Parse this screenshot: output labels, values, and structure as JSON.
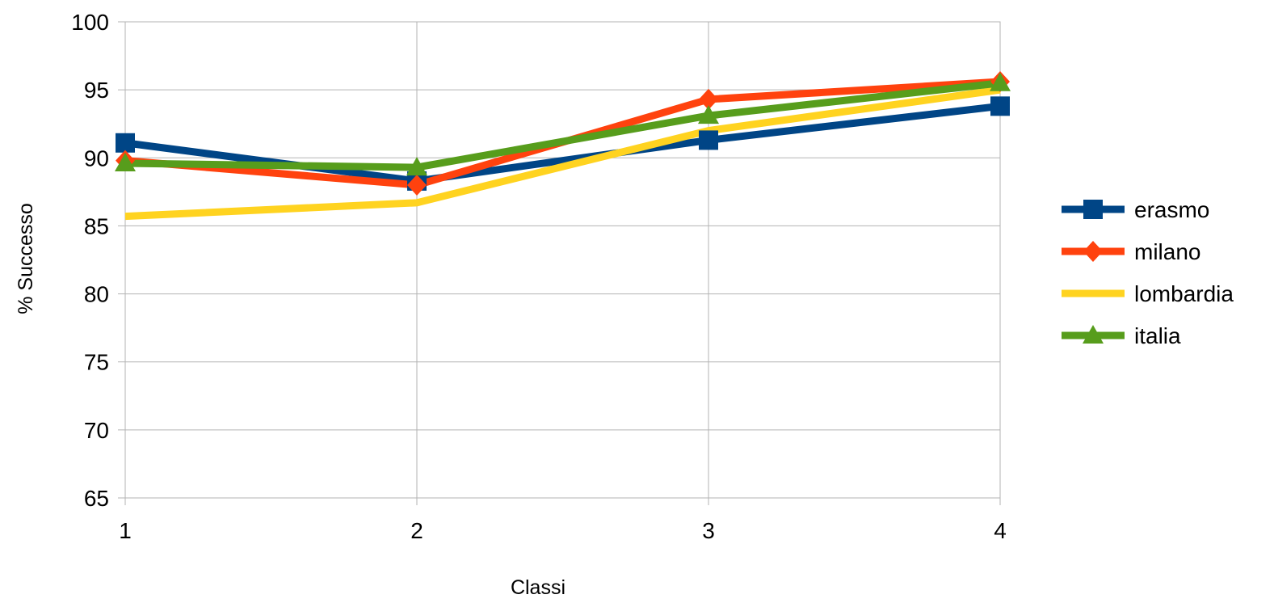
{
  "chart_data": {
    "type": "line",
    "title": "",
    "xlabel": "Classi",
    "ylabel": "% Successo",
    "x": [
      1,
      2,
      3,
      4
    ],
    "x_tick_labels": [
      "1",
      "2",
      "3",
      "4"
    ],
    "ylim": [
      65,
      100
    ],
    "y_ticks": [
      65,
      70,
      75,
      80,
      85,
      90,
      95,
      100
    ],
    "y_tick_labels": [
      "65",
      "70",
      "75",
      "80",
      "85",
      "90",
      "95",
      "100"
    ],
    "grid": true,
    "legend_position": "right",
    "series": [
      {
        "name": "erasmo",
        "color": "#004586",
        "marker": "square",
        "values": [
          91.1,
          88.3,
          91.3,
          93.8
        ]
      },
      {
        "name": "milano",
        "color": "#FF420E",
        "marker": "diamond",
        "values": [
          89.8,
          88.0,
          94.3,
          95.6
        ]
      },
      {
        "name": "lombardia",
        "color": "#FFD320",
        "marker": "none",
        "values": [
          85.7,
          86.7,
          92.0,
          95.0
        ]
      },
      {
        "name": "italia",
        "color": "#579D1C",
        "marker": "triangle",
        "values": [
          89.6,
          89.3,
          93.1,
          95.5
        ]
      }
    ]
  }
}
